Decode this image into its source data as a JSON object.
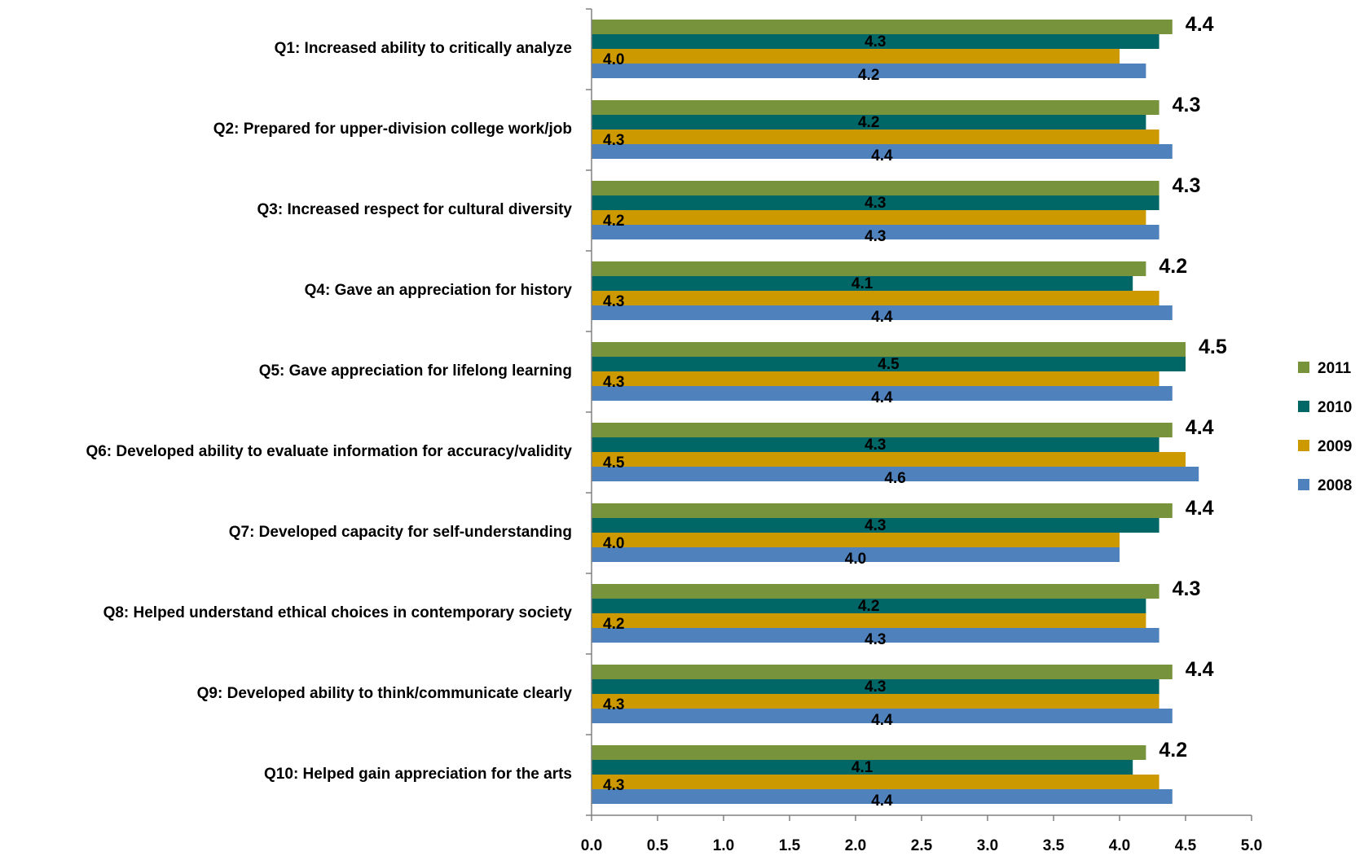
{
  "chart_data": {
    "type": "bar",
    "orientation": "horizontal",
    "categories": [
      "Q1: Increased ability to critically analyze",
      "Q2: Prepared for upper-division college work/job",
      "Q3: Increased respect for cultural diversity",
      "Q4: Gave an appreciation for history",
      "Q5: Gave appreciation for lifelong learning",
      "Q6: Developed ability to evaluate information for accuracy/validity",
      "Q7: Developed capacity for self-understanding",
      "Q8: Helped understand ethical choices in contemporary society",
      "Q9: Developed ability to think/communicate clearly",
      "Q10: Helped gain appreciation for the arts"
    ],
    "series": [
      {
        "name": "2011",
        "color": "#77933C",
        "values": [
          4.4,
          4.3,
          4.3,
          4.2,
          4.5,
          4.4,
          4.4,
          4.3,
          4.4,
          4.2
        ],
        "labels": [
          "4.4",
          "4.3",
          "4.3",
          "4.2",
          "4.5",
          "4.4",
          "4.4",
          "4.3",
          "4.4",
          "4.2"
        ]
      },
      {
        "name": "2010",
        "color": "#006666",
        "values": [
          4.3,
          4.2,
          4.3,
          4.1,
          4.5,
          4.3,
          4.3,
          4.2,
          4.3,
          4.1
        ],
        "labels": [
          "4.3",
          "4.2",
          "4.3",
          "4.1",
          "4.5",
          "4.3",
          "4.3",
          "4.2",
          "4.3",
          "4.1"
        ]
      },
      {
        "name": "2009",
        "color": "#CC9900",
        "values": [
          4.0,
          4.3,
          4.2,
          4.3,
          4.3,
          4.5,
          4.0,
          4.2,
          4.3,
          4.3
        ],
        "labels": [
          "4.0",
          "4.3",
          "4.2",
          "4.3",
          "4.3",
          "4.5",
          "4.0",
          "4.2",
          "4.3",
          "4.3"
        ]
      },
      {
        "name": "2008",
        "color": "#4F81BD",
        "values": [
          4.2,
          4.4,
          4.3,
          4.4,
          4.4,
          4.6,
          4.0,
          4.3,
          4.4,
          4.4
        ],
        "labels": [
          "4.2",
          "4.4",
          "4.3",
          "4.4",
          "4.4",
          "4.6",
          "4.0",
          "4.3",
          "4.4",
          "4.4"
        ]
      }
    ],
    "xlim": [
      0,
      5
    ],
    "x_ticks": [
      "0.0",
      "0.5",
      "1.0",
      "1.5",
      "2.0",
      "2.5",
      "3.0",
      "3.5",
      "4.0",
      "4.5",
      "5.0"
    ],
    "grid": false,
    "legend_position": "right"
  }
}
